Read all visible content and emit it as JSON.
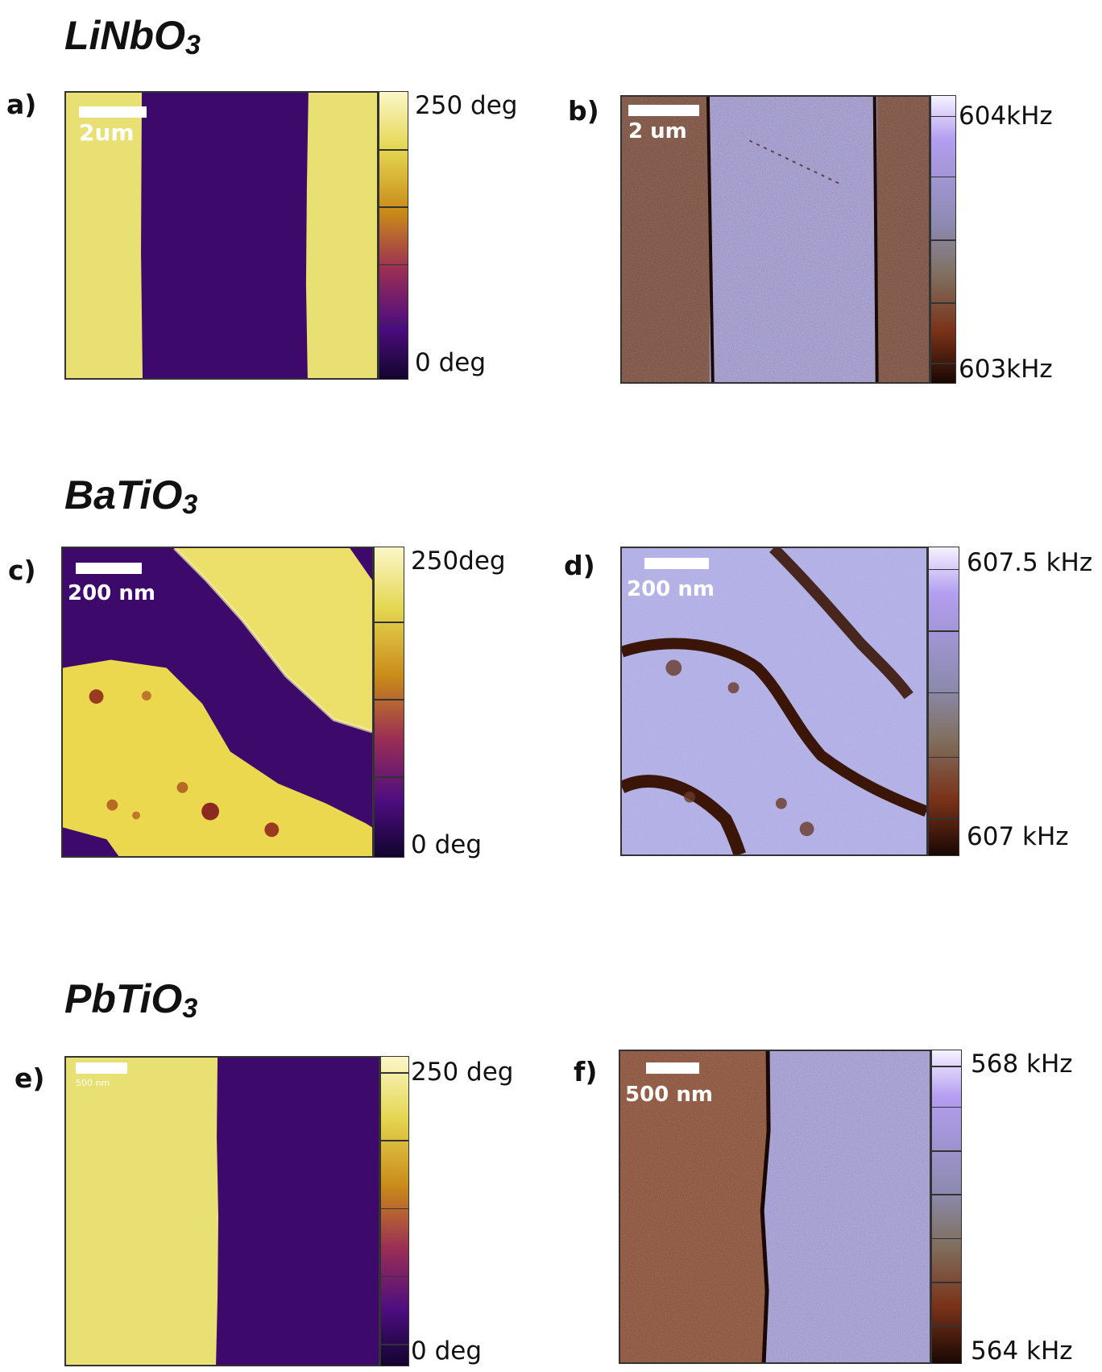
{
  "sections": [
    {
      "material": "LiNbO",
      "subscript": "3"
    },
    {
      "material": "BaTiO",
      "subscript": "3"
    },
    {
      "material": "PbTiO",
      "subscript": "3"
    }
  ],
  "panels": {
    "a": {
      "label": "a)",
      "scale_bar": "2um",
      "cbar_max": "250 deg",
      "cbar_min": "0 deg"
    },
    "b": {
      "label": "b)",
      "scale_bar": "2 um",
      "cbar_max": "604kHz",
      "cbar_min": "603kHz"
    },
    "c": {
      "label": "c)",
      "scale_bar": "200 nm",
      "cbar_max": "250deg",
      "cbar_min": "0 deg"
    },
    "d": {
      "label": "d)",
      "scale_bar": "200 nm",
      "cbar_max": "607.5 kHz",
      "cbar_min": "607 kHz"
    },
    "e": {
      "label": "e)",
      "scale_bar": "500 nm",
      "cbar_max": "250 deg",
      "cbar_min": "0 deg"
    },
    "f": {
      "label": "f)",
      "scale_bar": "500 nm",
      "cbar_max": "568 kHz",
      "cbar_min": "564 kHz"
    }
  },
  "colors": {
    "phase_high": "#e8e072",
    "phase_low": "#3d0a6b",
    "freq_high": "#a7a3e6",
    "freq_low": "#6b2f12"
  }
}
